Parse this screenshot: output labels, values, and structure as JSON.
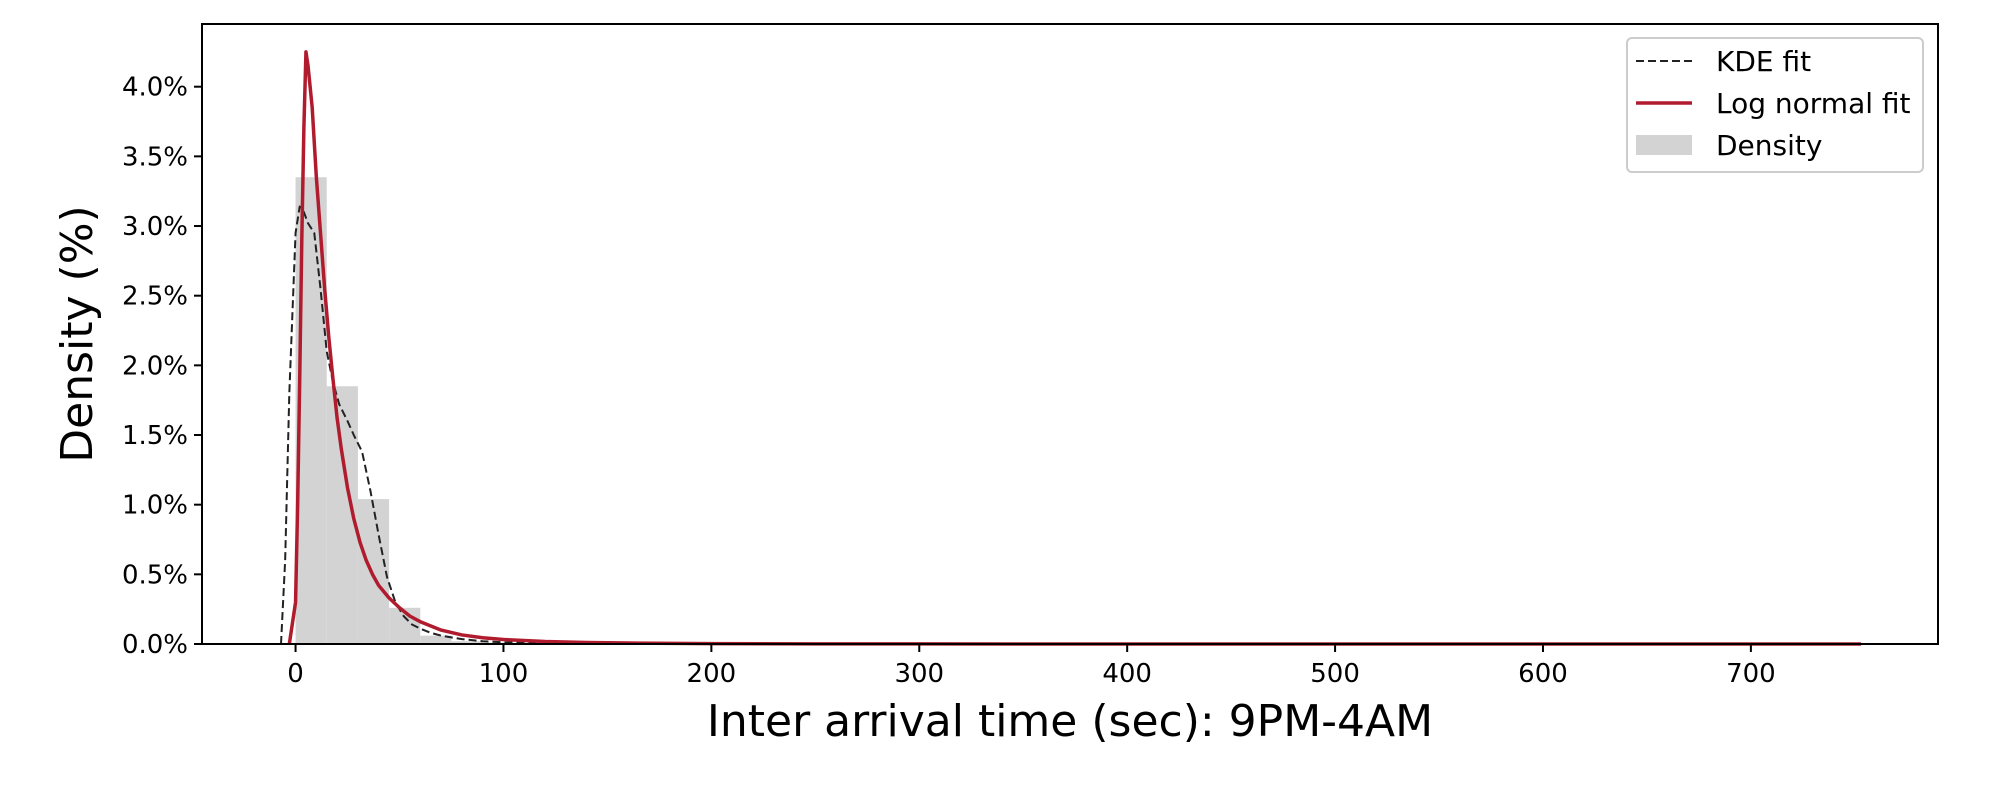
{
  "chart_data": {
    "type": "area",
    "xlabel": "Inter arrival time (sec): 9PM-4AM",
    "ylabel": "Density (%)",
    "xlim": [
      -45,
      790
    ],
    "ylim": [
      0,
      4.45
    ],
    "x_ticks": [
      0,
      100,
      200,
      300,
      400,
      500,
      600,
      700
    ],
    "x_tick_labels": [
      "0",
      "100",
      "200",
      "300",
      "400",
      "500",
      "600",
      "700"
    ],
    "y_ticks": [
      0,
      0.5,
      1.0,
      1.5,
      2.0,
      2.5,
      3.0,
      3.5,
      4.0
    ],
    "y_tick_labels": [
      "0.0%",
      "0.5%",
      "1.0%",
      "1.5%",
      "2.0%",
      "2.5%",
      "3.0%",
      "3.5%",
      "4.0%"
    ],
    "grid": false,
    "legend_position": "top-right",
    "colors": {
      "kde": "#222222",
      "lognormal": "#b01c2e",
      "density": "#d3d3d3"
    },
    "legend": [
      {
        "key": "kde",
        "label": "KDE fit",
        "style": "dashed-line"
      },
      {
        "key": "lognormal",
        "label": "Log normal fit",
        "style": "solid-line"
      },
      {
        "key": "density",
        "label": "Density",
        "style": "patch"
      }
    ],
    "histogram": {
      "name": "Density",
      "bin_width": 15,
      "bins": [
        {
          "x0": 0,
          "x1": 15,
          "value": 3.35
        },
        {
          "x0": 15,
          "x1": 30,
          "value": 1.85
        },
        {
          "x0": 30,
          "x1": 45,
          "value": 1.04
        },
        {
          "x0": 45,
          "x1": 60,
          "value": 0.26
        },
        {
          "x0": 60,
          "x1": 75,
          "value": 0.06
        },
        {
          "x0": 75,
          "x1": 90,
          "value": 0.02
        },
        {
          "x0": 90,
          "x1": 105,
          "value": 0.01
        }
      ]
    },
    "series": [
      {
        "name": "KDE fit",
        "key": "kde",
        "x": [
          -7,
          -5,
          -3,
          0,
          2,
          4,
          6,
          9,
          12,
          15,
          18,
          21,
          25,
          28,
          32,
          36,
          40,
          44,
          48,
          52,
          56,
          60,
          65,
          70,
          80,
          90,
          100,
          120,
          150,
          200,
          300,
          400,
          500,
          600,
          700,
          753
        ],
        "y": [
          0.0,
          0.6,
          1.8,
          2.95,
          3.14,
          3.1,
          3.02,
          2.95,
          2.55,
          2.1,
          1.88,
          1.72,
          1.6,
          1.5,
          1.38,
          1.1,
          0.78,
          0.48,
          0.3,
          0.2,
          0.14,
          0.11,
          0.08,
          0.06,
          0.035,
          0.02,
          0.012,
          0.006,
          0.002,
          0.0,
          0.0,
          0.0,
          0.0,
          0.0,
          0.0,
          0.0
        ]
      },
      {
        "name": "Log normal fit",
        "key": "lognormal",
        "x": [
          -3,
          0,
          1,
          2,
          3,
          4,
          5,
          6,
          7,
          8,
          9,
          10,
          12,
          14,
          16,
          18,
          20,
          22,
          25,
          28,
          31,
          34,
          37,
          40,
          45,
          50,
          55,
          60,
          70,
          80,
          90,
          100,
          120,
          140,
          160,
          200,
          250,
          300,
          400,
          500,
          600,
          700,
          753
        ],
        "y": [
          0.0,
          0.3,
          1.0,
          1.9,
          2.9,
          3.7,
          4.25,
          4.15,
          4.0,
          3.85,
          3.6,
          3.35,
          2.95,
          2.55,
          2.2,
          1.9,
          1.62,
          1.4,
          1.12,
          0.9,
          0.73,
          0.6,
          0.5,
          0.42,
          0.33,
          0.26,
          0.2,
          0.16,
          0.1,
          0.065,
          0.045,
          0.032,
          0.018,
          0.011,
          0.007,
          0.003,
          0.001,
          0.0005,
          0.0001,
          0.0,
          0.0,
          0.0,
          0.0
        ]
      }
    ]
  }
}
